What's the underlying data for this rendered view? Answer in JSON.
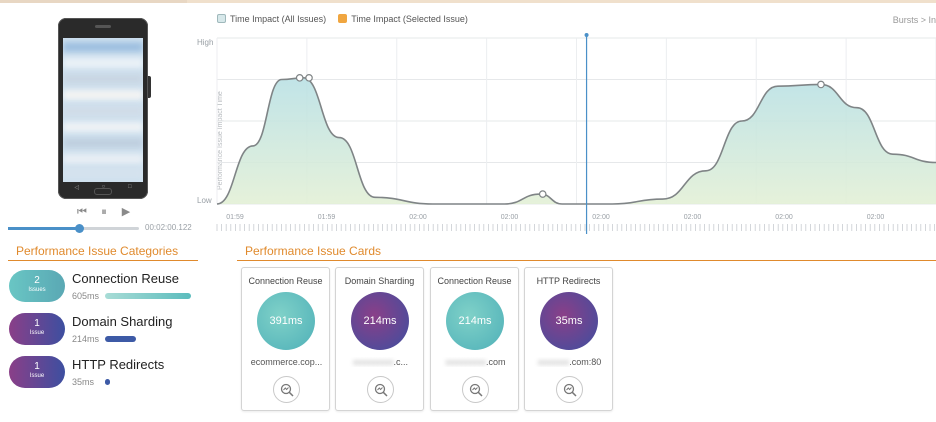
{
  "colors": {
    "accent": "#e08a2d",
    "teal": "#5bbcbd",
    "purple_navy": "#3d4fa0",
    "magenta": "#8a3f88",
    "legend_all": "#d7e8ea",
    "legend_selected": "#f0a640",
    "timeline": "#4a90c8"
  },
  "player": {
    "icons": [
      "skip-back-icon",
      "pause-icon",
      "play-icon"
    ],
    "timestamp": "00:02:00.122"
  },
  "categories": {
    "title": "Performance Issue Categories",
    "items": [
      {
        "count": "2",
        "unit": "Issues",
        "name": "Connection Reuse",
        "ms": "605ms",
        "share": 1.0
      },
      {
        "count": "1",
        "unit": "Issue",
        "name": "Domain Sharding",
        "ms": "214ms",
        "share": 0.35
      },
      {
        "count": "1",
        "unit": "Issue",
        "name": "HTTP Redirects",
        "ms": "35ms",
        "share": 0.06
      }
    ]
  },
  "chart": {
    "legend_all": "Time Impact (All Issues)",
    "legend_selected": "Time Impact (Selected Issue)",
    "bursts_link": "Bursts > In",
    "y_label": "Performance Issue Impact Time",
    "y_high": "High",
    "y_low": "Low",
    "x_ticks": [
      "01:59",
      "01:59",
      "02:00",
      "02:00",
      "02:00",
      "02:00",
      "02:00",
      "02:00"
    ]
  },
  "chart_data": {
    "type": "area",
    "title": "",
    "xlabel": "",
    "ylabel": "Performance Issue Impact Time",
    "y_range": [
      "Low",
      "High"
    ],
    "series": [
      {
        "name": "Time Impact (All Issues)",
        "x": [
          0,
          0.05,
          0.09,
          0.12,
          0.17,
          0.22,
          0.3,
          0.4,
          0.45,
          0.48,
          0.52,
          0.55,
          0.62,
          0.68,
          0.73,
          0.78,
          0.84,
          0.89,
          0.94,
          1.0
        ],
        "y": [
          0.0,
          0.35,
          0.75,
          0.76,
          0.4,
          0.04,
          0.0,
          0.0,
          0.06,
          0.0,
          0.0,
          0.0,
          0.03,
          0.2,
          0.5,
          0.71,
          0.72,
          0.58,
          0.3,
          0.25
        ]
      }
    ],
    "markers": [
      {
        "x": 0.115,
        "y": 0.76
      },
      {
        "x": 0.128,
        "y": 0.76
      },
      {
        "x": 0.453,
        "y": 0.06
      },
      {
        "x": 0.84,
        "y": 0.72
      }
    ],
    "playhead_x": 0.514,
    "grid": true
  },
  "cards": {
    "title": "Performance Issue Cards",
    "items": [
      {
        "title": "Connection Reuse",
        "value": "391ms",
        "domain_prefix": "",
        "domain_visible": "ecommerce.cop...",
        "style": "teal"
      },
      {
        "title": "Domain Sharding",
        "value": "214ms",
        "domain_prefix": "xxxxxxxxx",
        "domain_visible": ".c...",
        "style": "purple"
      },
      {
        "title": "Connection Reuse",
        "value": "214ms",
        "domain_prefix": "xxxxxxxxx",
        "domain_visible": ".com",
        "style": "teal"
      },
      {
        "title": "HTTP Redirects",
        "value": "35ms",
        "domain_prefix": "xxxxxxx",
        "domain_visible": ".com:80",
        "style": "purple"
      }
    ]
  }
}
